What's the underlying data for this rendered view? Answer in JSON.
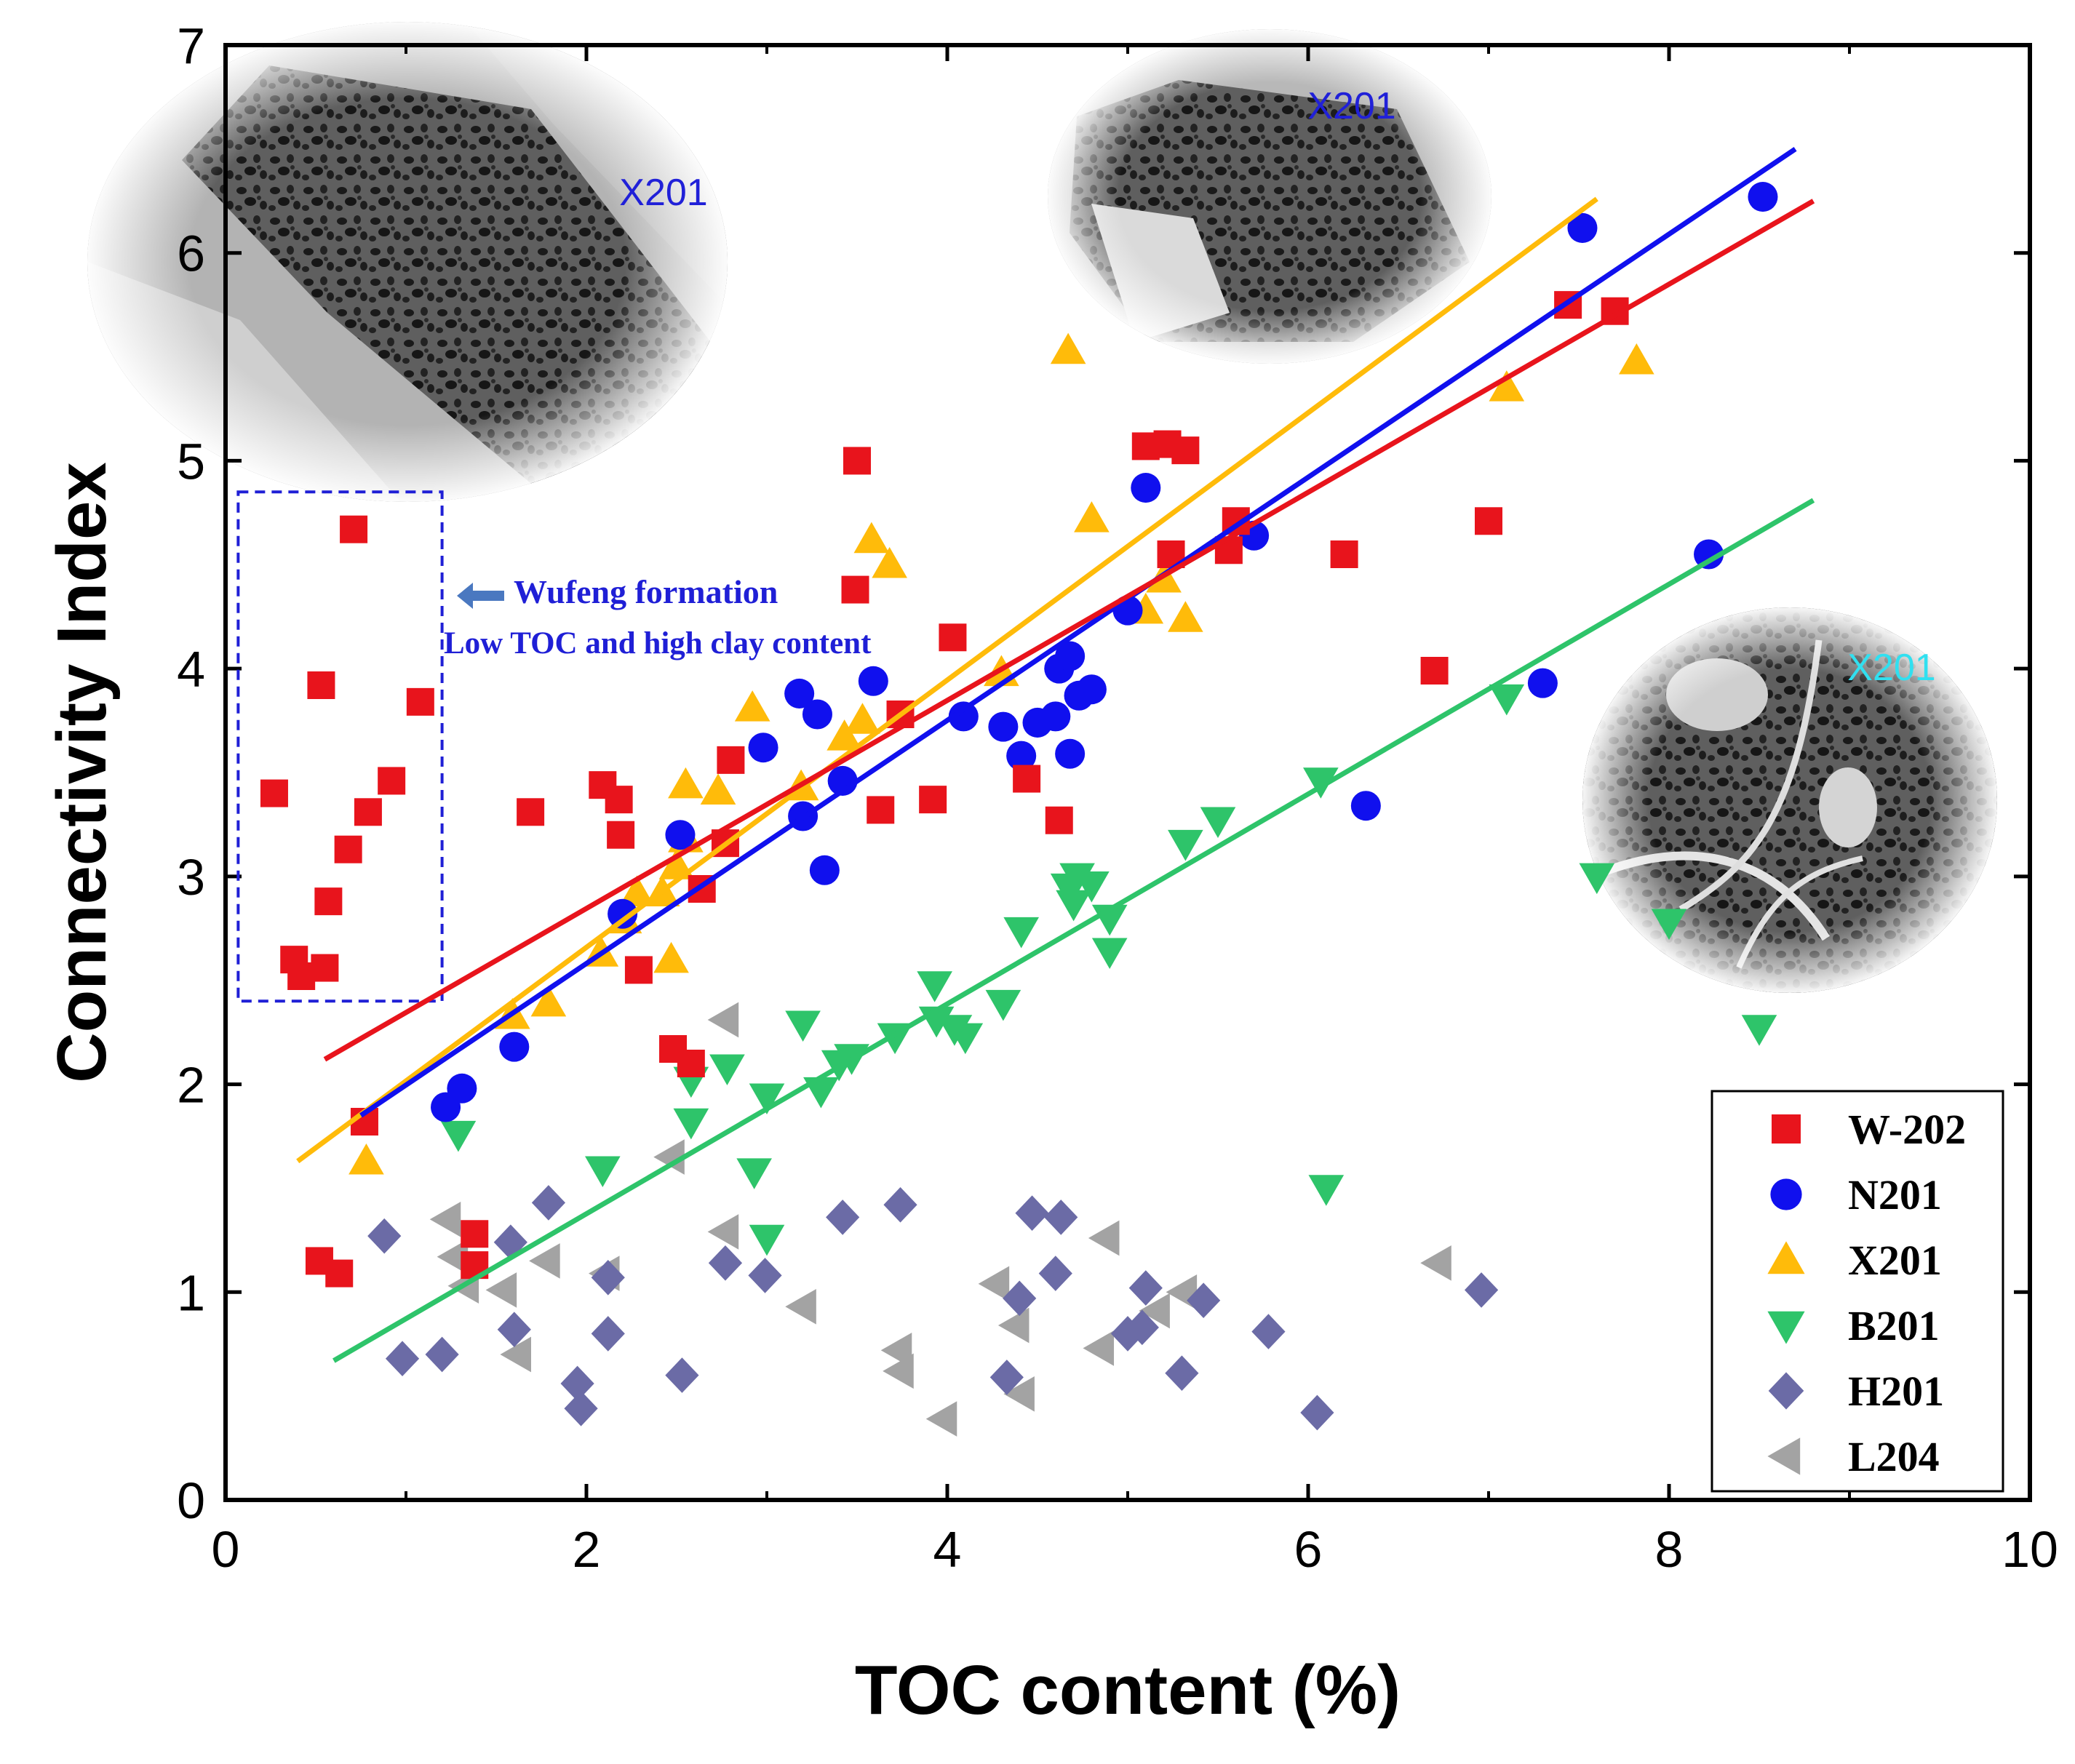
{
  "chart_data": {
    "type": "scatter",
    "xlabel": "TOC content (%)",
    "ylabel": "Connectivity Index",
    "xlim": [
      0,
      10
    ],
    "ylim": [
      0,
      7
    ],
    "xticks": [
      "0",
      "2",
      "4",
      "6",
      "8",
      "10"
    ],
    "yticks": [
      "0",
      "1",
      "2",
      "3",
      "4",
      "5",
      "6",
      "7"
    ],
    "legend_position": "bottom-right",
    "annotation": {
      "line1": "Wufeng formation",
      "line2": "Low TOC and high clay content",
      "box_color": "#1f1fd6"
    },
    "insets": [
      {
        "label": "X201",
        "label_color": "#2020d8"
      },
      {
        "label": "X201",
        "label_color": "#2020d8"
      },
      {
        "label": "X201",
        "label_color": "#30e0f0"
      }
    ],
    "series": [
      {
        "name": "W-202",
        "marker": "square",
        "color": "#e8141c",
        "fit": {
          "x": [
            0.55,
            8.8
          ],
          "y": [
            2.12,
            6.25
          ]
        },
        "points": [
          [
            0.27,
            3.4
          ],
          [
            0.38,
            2.6
          ],
          [
            0.42,
            2.52
          ],
          [
            0.53,
            3.92
          ],
          [
            0.55,
            2.56
          ],
          [
            0.57,
            2.88
          ],
          [
            0.68,
            3.13
          ],
          [
            0.71,
            4.67
          ],
          [
            0.79,
            3.31
          ],
          [
            0.92,
            3.46
          ],
          [
            1.08,
            3.84
          ],
          [
            0.77,
            1.82
          ],
          [
            0.52,
            1.15
          ],
          [
            0.63,
            1.09
          ],
          [
            1.38,
            1.28
          ],
          [
            1.38,
            1.13
          ],
          [
            1.69,
            3.31
          ],
          [
            2.09,
            3.44
          ],
          [
            2.18,
            3.37
          ],
          [
            2.19,
            3.2
          ],
          [
            2.29,
            2.55
          ],
          [
            2.48,
            2.17
          ],
          [
            2.58,
            2.1
          ],
          [
            2.64,
            2.94
          ],
          [
            2.8,
            3.56
          ],
          [
            2.77,
            3.16
          ],
          [
            3.5,
            5.0
          ],
          [
            3.49,
            4.38
          ],
          [
            3.63,
            3.32
          ],
          [
            3.74,
            3.78
          ],
          [
            3.92,
            3.37
          ],
          [
            4.03,
            4.15
          ],
          [
            4.44,
            3.47
          ],
          [
            4.62,
            3.27
          ],
          [
            5.1,
            5.07
          ],
          [
            5.22,
            5.08
          ],
          [
            5.32,
            5.05
          ],
          [
            5.24,
            4.55
          ],
          [
            5.56,
            4.57
          ],
          [
            5.6,
            4.71
          ],
          [
            6.2,
            4.55
          ],
          [
            6.7,
            3.99
          ],
          [
            7.0,
            4.71
          ],
          [
            7.44,
            5.75
          ],
          [
            7.7,
            5.72
          ]
        ]
      },
      {
        "name": "N201",
        "marker": "circle",
        "color": "#1010ee",
        "fit": {
          "x": [
            0.75,
            8.7
          ],
          "y": [
            1.85,
            6.5
          ]
        },
        "points": [
          [
            1.22,
            1.89
          ],
          [
            1.31,
            1.98
          ],
          [
            1.6,
            2.18
          ],
          [
            2.2,
            2.82
          ],
          [
            2.52,
            3.2
          ],
          [
            2.98,
            3.62
          ],
          [
            3.18,
            3.88
          ],
          [
            3.2,
            3.29
          ],
          [
            3.28,
            3.78
          ],
          [
            3.32,
            3.03
          ],
          [
            3.42,
            3.46
          ],
          [
            3.59,
            3.94
          ],
          [
            4.09,
            3.77
          ],
          [
            4.31,
            3.72
          ],
          [
            4.41,
            3.58
          ],
          [
            4.5,
            3.74
          ],
          [
            4.6,
            3.77
          ],
          [
            4.62,
            4.0
          ],
          [
            4.68,
            4.06
          ],
          [
            4.68,
            3.59
          ],
          [
            4.73,
            3.87
          ],
          [
            4.8,
            3.9
          ],
          [
            5.0,
            4.28
          ],
          [
            5.1,
            4.87
          ],
          [
            5.7,
            4.64
          ],
          [
            6.32,
            3.34
          ],
          [
            7.3,
            3.93
          ],
          [
            7.52,
            6.12
          ],
          [
            8.22,
            4.55
          ],
          [
            8.52,
            6.27
          ]
        ]
      },
      {
        "name": "X201",
        "marker": "triangle-up",
        "color": "#ffbb0a",
        "fit": {
          "x": [
            0.4,
            7.6
          ],
          "y": [
            1.63,
            6.26
          ]
        },
        "points": [
          [
            0.78,
            1.63
          ],
          [
            1.59,
            2.33
          ],
          [
            1.79,
            2.39
          ],
          [
            2.08,
            2.63
          ],
          [
            2.21,
            2.79
          ],
          [
            2.28,
            2.92
          ],
          [
            2.42,
            2.92
          ],
          [
            2.47,
            2.6
          ],
          [
            2.5,
            3.05
          ],
          [
            2.55,
            3.18
          ],
          [
            2.55,
            3.44
          ],
          [
            2.73,
            3.41
          ],
          [
            2.92,
            3.81
          ],
          [
            3.19,
            3.43
          ],
          [
            3.43,
            3.67
          ],
          [
            3.53,
            3.75
          ],
          [
            3.58,
            4.62
          ],
          [
            3.68,
            4.5
          ],
          [
            4.3,
            3.98
          ],
          [
            4.67,
            5.53
          ],
          [
            4.8,
            4.72
          ],
          [
            5.1,
            4.28
          ],
          [
            5.2,
            4.43
          ],
          [
            5.32,
            4.24
          ],
          [
            7.1,
            5.35
          ],
          [
            7.82,
            5.48
          ]
        ]
      },
      {
        "name": "B201",
        "marker": "triangle-down",
        "color": "#2ec46a",
        "fit": {
          "x": [
            0.6,
            8.8
          ],
          "y": [
            0.67,
            4.81
          ]
        },
        "points": [
          [
            1.29,
            1.76
          ],
          [
            2.09,
            1.59
          ],
          [
            2.58,
            2.02
          ],
          [
            2.58,
            1.82
          ],
          [
            2.78,
            2.08
          ],
          [
            2.93,
            1.58
          ],
          [
            3.0,
            1.26
          ],
          [
            3.0,
            1.94
          ],
          [
            3.2,
            2.29
          ],
          [
            3.3,
            1.97
          ],
          [
            3.4,
            2.1
          ],
          [
            3.47,
            2.13
          ],
          [
            3.71,
            2.23
          ],
          [
            3.93,
            2.48
          ],
          [
            3.94,
            2.31
          ],
          [
            4.04,
            2.27
          ],
          [
            4.1,
            2.23
          ],
          [
            4.31,
            2.39
          ],
          [
            4.41,
            2.74
          ],
          [
            4.67,
            2.95
          ],
          [
            4.7,
            2.87
          ],
          [
            4.72,
            3.0
          ],
          [
            4.8,
            2.96
          ],
          [
            4.9,
            2.8
          ],
          [
            4.9,
            2.64
          ],
          [
            5.32,
            3.16
          ],
          [
            5.5,
            3.27
          ],
          [
            6.07,
            3.46
          ],
          [
            6.1,
            1.5
          ],
          [
            7.1,
            3.86
          ],
          [
            7.6,
            3.0
          ],
          [
            8.0,
            2.78
          ],
          [
            8.5,
            2.27
          ]
        ]
      },
      {
        "name": "H201",
        "marker": "diamond",
        "color": "#6b6ba6",
        "points": [
          [
            0.88,
            1.27
          ],
          [
            0.98,
            0.68
          ],
          [
            1.2,
            0.7
          ],
          [
            1.58,
            1.24
          ],
          [
            1.6,
            0.82
          ],
          [
            1.79,
            1.43
          ],
          [
            1.95,
            0.56
          ],
          [
            1.97,
            0.44
          ],
          [
            2.12,
            1.07
          ],
          [
            2.12,
            0.8
          ],
          [
            2.53,
            0.6
          ],
          [
            2.77,
            1.14
          ],
          [
            2.99,
            1.08
          ],
          [
            3.42,
            1.36
          ],
          [
            3.74,
            1.42
          ],
          [
            4.33,
            0.59
          ],
          [
            4.4,
            0.97
          ],
          [
            4.47,
            1.38
          ],
          [
            4.6,
            1.09
          ],
          [
            4.63,
            1.36
          ],
          [
            5.0,
            0.8
          ],
          [
            5.08,
            0.83
          ],
          [
            5.1,
            1.02
          ],
          [
            5.3,
            0.61
          ],
          [
            5.42,
            0.96
          ],
          [
            5.78,
            0.81
          ],
          [
            6.05,
            0.42
          ],
          [
            6.96,
            1.01
          ]
        ]
      },
      {
        "name": "L204",
        "marker": "triangle-left",
        "color": "#a3a3a3",
        "points": [
          [
            1.23,
            1.35
          ],
          [
            1.27,
            1.17
          ],
          [
            1.33,
            1.03
          ],
          [
            1.54,
            1.01
          ],
          [
            1.62,
            0.7
          ],
          [
            1.78,
            1.15
          ],
          [
            2.11,
            1.09
          ],
          [
            2.47,
            1.65
          ],
          [
            2.77,
            2.31
          ],
          [
            2.77,
            1.29
          ],
          [
            3.2,
            0.93
          ],
          [
            3.73,
            0.72
          ],
          [
            3.74,
            0.62
          ],
          [
            3.98,
            0.39
          ],
          [
            4.27,
            1.04
          ],
          [
            4.38,
            0.84
          ],
          [
            4.41,
            0.51
          ],
          [
            4.85,
            0.73
          ],
          [
            4.88,
            1.26
          ],
          [
            5.16,
            0.91
          ],
          [
            5.31,
            1.0
          ],
          [
            6.72,
            1.14
          ]
        ]
      }
    ]
  }
}
